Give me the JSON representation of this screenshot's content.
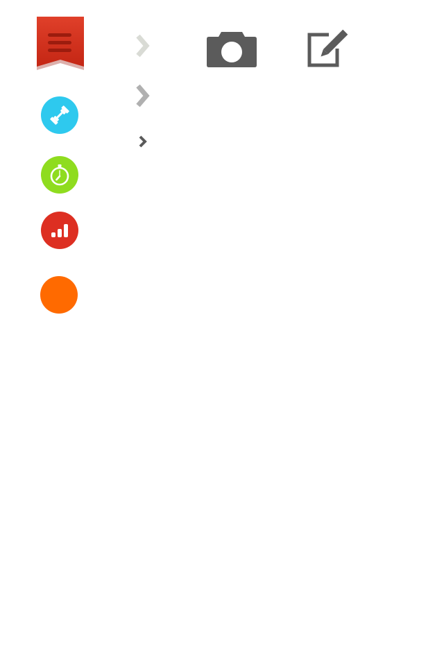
{
  "menu": {
    "icon": "menu-ribbon-icon",
    "color": "#d6301d"
  },
  "circles": [
    {
      "icon": "dumbbell-icon",
      "color": "#2ec9ee"
    },
    {
      "icon": "stopwatch-icon",
      "color": "#8fdc1f"
    },
    {
      "icon": "bar-chart-icon",
      "color": "#dd2f22"
    },
    {
      "icon": "orange-dot-icon",
      "color": "#ff6a00"
    }
  ],
  "chevrons": [
    {
      "icon": "chevron-right-icon",
      "color": "#d9dbd5"
    },
    {
      "icon": "chevron-right-icon",
      "color": "#b0b0b0"
    },
    {
      "icon": "chevron-right-icon",
      "color": "#5a5a5a"
    }
  ],
  "toolbar": {
    "camera": {
      "icon": "camera-icon",
      "color": "#5b5b5b"
    },
    "edit": {
      "icon": "edit-icon",
      "color": "#5b5b5b"
    }
  }
}
